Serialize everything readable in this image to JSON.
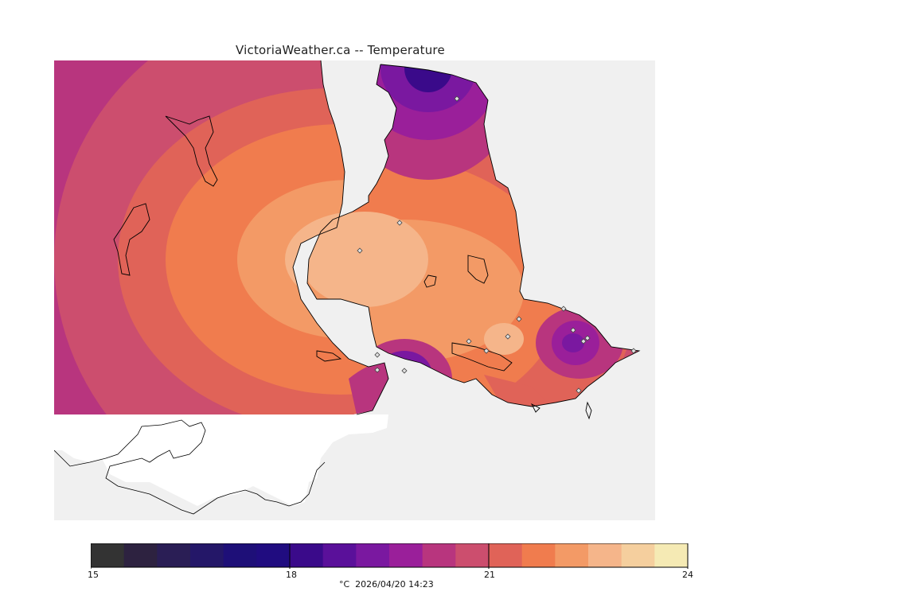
{
  "title": "VictoriaWeather.ca -- Temperature",
  "colorbar": {
    "min": 15,
    "max": 24,
    "tick_labels": [
      "15",
      "18",
      "21",
      "24"
    ],
    "label": "°C  2026/04/20 14:23",
    "colors": [
      "#333333",
      "#2d2240",
      "#2a1e55",
      "#241768",
      "#1e0f78",
      "#200c80",
      "#3a0a8a",
      "#5a109a",
      "#7a18a0",
      "#9a1f9a",
      "#b8357e",
      "#cc4e6e",
      "#e06358",
      "#f07c4e",
      "#f39a66",
      "#f5b58a",
      "#f5cf9e",
      "#f5eab4"
    ]
  },
  "map": {
    "land_color": "#ffffff",
    "water_color": "#f0f0f0",
    "station_marker": "diamond-icon"
  }
}
